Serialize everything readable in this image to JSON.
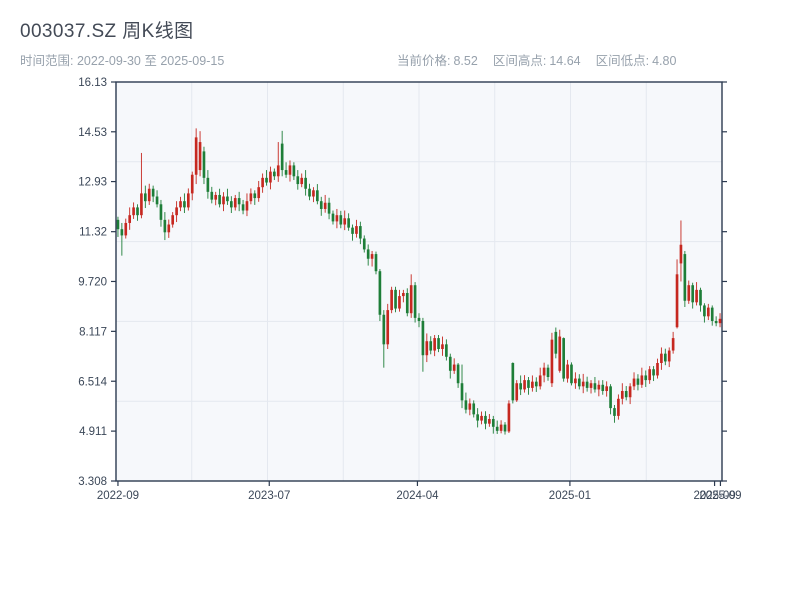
{
  "header": {
    "title": "003037.SZ 周K线图",
    "subtitle": "时间范围: 2022-09-30 至 2025-09-15",
    "info_items": [
      {
        "label": "当前价格:",
        "value": "8.52"
      },
      {
        "label": "区间高点:",
        "value": "14.64"
      },
      {
        "label": "区间低点:",
        "value": "4.80"
      }
    ]
  },
  "chart_data": {
    "type": "candlestick",
    "title": "003037.SZ 周K线图",
    "period": "weekly",
    "date_start": "2022-09-30",
    "date_end": "2025-09-15",
    "current_price": 8.52,
    "range_high": 14.64,
    "range_low": 4.8,
    "ylim": [
      3.308,
      16.13
    ],
    "yticks": [
      {
        "v": 16.13,
        "label": "16.13"
      },
      {
        "v": 14.53,
        "label": "14.53"
      },
      {
        "v": 12.93,
        "label": "12.93"
      },
      {
        "v": 11.32,
        "label": "11.32"
      },
      {
        "v": 9.72,
        "label": "9.720"
      },
      {
        "v": 8.117,
        "label": "8.117"
      },
      {
        "v": 6.514,
        "label": "6.514"
      },
      {
        "v": 4.911,
        "label": "4.911"
      },
      {
        "v": 3.308,
        "label": "3.308"
      }
    ],
    "xticks": [
      {
        "pos": 0,
        "label": "2022-09"
      },
      {
        "pos": 38.7,
        "label": "2023-07"
      },
      {
        "pos": 76.6,
        "label": "2024-04"
      },
      {
        "pos": 115.6,
        "label": "2025-01"
      },
      {
        "pos": 152.6,
        "label": "2025-09"
      },
      {
        "pos": 154.1,
        "label": "2025-09"
      }
    ],
    "grid": true,
    "grid_divisions": {
      "x": 8,
      "y": 5
    },
    "colors": {
      "up": "#c62820",
      "down": "#1e7e38",
      "spine": "#2c3a50",
      "grid": "#e4e8ef",
      "plot_bg": "#f6f8fb",
      "tick_text": "#3b4758"
    },
    "candles": [
      [
        11.7,
        11.8,
        11.15,
        11.4
      ],
      [
        11.4,
        11.6,
        10.55,
        11.2
      ],
      [
        11.2,
        11.74,
        11.1,
        11.6
      ],
      [
        11.6,
        12.1,
        11.38,
        11.85
      ],
      [
        11.85,
        12.26,
        11.73,
        12.1
      ],
      [
        12.1,
        12.2,
        11.67,
        11.85
      ],
      [
        11.85,
        13.85,
        11.75,
        12.55
      ],
      [
        12.55,
        12.8,
        12.08,
        12.3
      ],
      [
        12.3,
        12.86,
        12.18,
        12.7
      ],
      [
        12.7,
        12.8,
        12.27,
        12.45
      ],
      [
        12.45,
        12.65,
        12.1,
        12.2
      ],
      [
        12.2,
        12.34,
        11.48,
        11.7
      ],
      [
        11.7,
        11.95,
        11.05,
        11.3
      ],
      [
        11.3,
        11.71,
        11.12,
        11.55
      ],
      [
        11.55,
        11.95,
        11.45,
        11.85
      ],
      [
        11.85,
        12.3,
        11.63,
        12.1
      ],
      [
        12.1,
        12.44,
        11.98,
        12.3
      ],
      [
        12.3,
        12.55,
        11.92,
        12.1
      ],
      [
        12.1,
        12.71,
        12.0,
        12.55
      ],
      [
        12.55,
        13.25,
        12.33,
        13.15
      ],
      [
        13.15,
        14.64,
        12.85,
        14.35
      ],
      [
        13.3,
        14.55,
        13.1,
        14.2
      ],
      [
        13.9,
        14.05,
        12.85,
        13.05
      ],
      [
        13.05,
        13.3,
        12.38,
        12.6
      ],
      [
        12.6,
        12.76,
        12.23,
        12.35
      ],
      [
        12.35,
        12.6,
        12.17,
        12.5
      ],
      [
        12.5,
        12.7,
        12.1,
        12.2
      ],
      [
        12.2,
        12.59,
        11.98,
        12.45
      ],
      [
        12.45,
        12.7,
        12.18,
        12.3
      ],
      [
        12.3,
        12.46,
        11.92,
        12.1
      ],
      [
        12.1,
        12.5,
        12.0,
        12.4
      ],
      [
        12.4,
        12.6,
        11.98,
        12.2
      ],
      [
        12.2,
        12.34,
        11.88,
        12.0
      ],
      [
        12.0,
        12.55,
        11.82,
        12.3
      ],
      [
        12.3,
        12.71,
        12.2,
        12.55
      ],
      [
        12.55,
        12.65,
        12.18,
        12.4
      ],
      [
        12.4,
        12.95,
        12.28,
        12.75
      ],
      [
        12.75,
        13.19,
        12.57,
        13.05
      ],
      [
        13.05,
        13.3,
        12.8,
        12.9
      ],
      [
        12.9,
        13.41,
        12.68,
        13.25
      ],
      [
        13.25,
        13.35,
        12.98,
        13.1
      ],
      [
        13.1,
        14.2,
        12.92,
        13.45
      ],
      [
        14.15,
        14.56,
        13.1,
        13.3
      ],
      [
        13.3,
        13.55,
        13.05,
        13.15
      ],
      [
        13.15,
        13.61,
        12.93,
        13.45
      ],
      [
        13.45,
        13.55,
        12.98,
        13.1
      ],
      [
        13.1,
        13.3,
        12.67,
        12.85
      ],
      [
        12.85,
        13.19,
        12.75,
        13.05
      ],
      [
        13.05,
        13.3,
        12.48,
        12.7
      ],
      [
        12.7,
        12.86,
        12.33,
        12.45
      ],
      [
        12.45,
        12.75,
        12.27,
        12.65
      ],
      [
        12.65,
        12.85,
        12.2,
        12.3
      ],
      [
        12.3,
        12.44,
        11.83,
        12.05
      ],
      [
        12.05,
        12.5,
        11.93,
        12.25
      ],
      [
        12.25,
        12.41,
        11.72,
        11.9
      ],
      [
        11.9,
        12.0,
        11.55,
        11.65
      ],
      [
        11.65,
        12.05,
        11.43,
        11.85
      ],
      [
        11.85,
        11.99,
        11.43,
        11.55
      ],
      [
        11.55,
        12.0,
        11.37,
        11.75
      ],
      [
        11.75,
        11.91,
        11.35,
        11.45
      ],
      [
        11.45,
        11.55,
        11.03,
        11.25
      ],
      [
        11.25,
        11.7,
        11.13,
        11.5
      ],
      [
        11.5,
        11.64,
        10.92,
        11.1
      ],
      [
        11.1,
        11.2,
        10.65,
        10.75
      ],
      [
        10.75,
        10.91,
        10.23,
        10.45
      ],
      [
        10.45,
        10.7,
        10.2,
        10.6
      ],
      [
        10.6,
        10.68,
        9.95,
        10.05
      ],
      [
        10.05,
        10.12,
        8.45,
        8.65
      ],
      [
        8.65,
        8.8,
        6.95,
        7.7
      ],
      [
        7.7,
        9.0,
        7.55,
        8.8
      ],
      [
        8.8,
        9.55,
        8.7,
        9.45
      ],
      [
        9.45,
        9.55,
        8.73,
        8.85
      ],
      [
        8.85,
        9.45,
        8.75,
        9.25
      ],
      [
        9.25,
        9.45,
        9.05,
        9.35
      ],
      [
        9.35,
        9.5,
        8.6,
        8.7
      ],
      [
        8.7,
        9.95,
        8.55,
        9.6
      ],
      [
        9.6,
        9.7,
        8.4,
        8.55
      ],
      [
        8.55,
        8.7,
        8.25,
        8.45
      ],
      [
        8.45,
        8.55,
        6.82,
        7.35
      ],
      [
        7.35,
        8.05,
        7.13,
        7.8
      ],
      [
        7.8,
        7.96,
        7.38,
        7.5
      ],
      [
        7.5,
        8.0,
        7.32,
        7.9
      ],
      [
        7.9,
        8.0,
        7.45,
        7.55
      ],
      [
        7.55,
        7.95,
        7.33,
        7.7
      ],
      [
        7.7,
        7.86,
        7.18,
        7.3
      ],
      [
        7.3,
        7.4,
        6.6,
        6.85
      ],
      [
        6.85,
        7.25,
        6.75,
        7.05
      ],
      [
        7.05,
        7.1,
        6.3,
        6.45
      ],
      [
        6.45,
        7.05,
        5.65,
        5.9
      ],
      [
        5.9,
        6.15,
        5.48,
        5.6
      ],
      [
        5.6,
        5.96,
        5.42,
        5.8
      ],
      [
        5.8,
        5.9,
        5.35,
        5.45
      ],
      [
        5.45,
        5.65,
        5.03,
        5.25
      ],
      [
        5.25,
        5.54,
        5.13,
        5.4
      ],
      [
        5.4,
        5.55,
        4.97,
        5.15
      ],
      [
        5.15,
        5.46,
        5.05,
        5.3
      ],
      [
        5.3,
        5.4,
        4.83,
        5.05
      ],
      [
        5.05,
        5.25,
        4.82,
        4.92
      ],
      [
        4.92,
        5.26,
        4.84,
        5.12
      ],
      [
        5.12,
        5.2,
        4.8,
        4.9
      ],
      [
        4.9,
        5.9,
        4.85,
        5.8
      ],
      [
        7.1,
        7.12,
        5.8,
        5.9
      ],
      [
        5.9,
        6.55,
        5.85,
        6.45
      ],
      [
        6.45,
        6.7,
        6.07,
        6.25
      ],
      [
        6.25,
        6.71,
        6.15,
        6.55
      ],
      [
        6.55,
        6.65,
        6.08,
        6.3
      ],
      [
        6.3,
        6.7,
        6.18,
        6.5
      ],
      [
        6.5,
        6.64,
        6.17,
        6.35
      ],
      [
        6.35,
        6.95,
        6.25,
        6.7
      ],
      [
        6.7,
        7.11,
        6.48,
        6.95
      ],
      [
        6.95,
        7.05,
        6.53,
        6.65
      ],
      [
        6.45,
        8.07,
        6.33,
        7.85
      ],
      [
        8.1,
        8.24,
        7.25,
        7.4
      ],
      [
        6.85,
        8.17,
        6.79,
        7.95
      ],
      [
        7.9,
        7.92,
        6.5,
        6.6
      ],
      [
        6.6,
        7.2,
        6.47,
        7.05
      ],
      [
        7.05,
        7.12,
        6.38,
        6.45
      ],
      [
        6.45,
        6.8,
        6.27,
        6.6
      ],
      [
        6.6,
        6.74,
        6.25,
        6.35
      ],
      [
        6.35,
        6.75,
        6.13,
        6.5
      ],
      [
        6.5,
        6.66,
        6.18,
        6.3
      ],
      [
        6.3,
        6.55,
        6.12,
        6.45
      ],
      [
        6.45,
        6.65,
        6.15,
        6.25
      ],
      [
        6.25,
        6.54,
        6.03,
        6.4
      ],
      [
        6.4,
        6.55,
        6.08,
        6.2
      ],
      [
        6.2,
        6.51,
        6.02,
        6.35
      ],
      [
        6.35,
        6.42,
        5.45,
        5.65
      ],
      [
        5.65,
        5.75,
        5.18,
        5.4
      ],
      [
        5.4,
        6.09,
        5.28,
        5.95
      ],
      [
        5.95,
        6.45,
        5.77,
        6.2
      ],
      [
        6.2,
        6.36,
        5.9,
        6.0
      ],
      [
        6.0,
        6.45,
        5.78,
        6.35
      ],
      [
        6.35,
        6.8,
        6.23,
        6.6
      ],
      [
        6.6,
        6.74,
        6.22,
        6.4
      ],
      [
        6.4,
        6.95,
        6.3,
        6.7
      ],
      [
        6.7,
        6.86,
        6.33,
        6.55
      ],
      [
        6.55,
        7.0,
        6.43,
        6.9
      ],
      [
        6.9,
        7.0,
        6.52,
        6.7
      ],
      [
        6.7,
        7.24,
        6.6,
        7.1
      ],
      [
        7.1,
        7.6,
        6.88,
        7.4
      ],
      [
        7.4,
        7.56,
        7.03,
        7.15
      ],
      [
        7.15,
        7.6,
        6.97,
        7.5
      ],
      [
        7.5,
        8.1,
        7.4,
        7.9
      ],
      [
        8.25,
        10.43,
        8.21,
        9.95
      ],
      [
        10.3,
        11.68,
        9.72,
        10.9
      ],
      [
        10.6,
        10.7,
        8.9,
        9.1
      ],
      [
        9.1,
        9.75,
        9.0,
        9.6
      ],
      [
        9.6,
        9.68,
        8.85,
        9.05
      ],
      [
        9.05,
        9.7,
        8.95,
        9.45
      ],
      [
        9.45,
        9.52,
        8.75,
        8.95
      ],
      [
        8.95,
        9.02,
        8.4,
        8.6
      ],
      [
        8.6,
        9.0,
        8.48,
        8.88
      ],
      [
        8.88,
        8.95,
        8.3,
        8.45
      ],
      [
        8.45,
        8.6,
        8.28,
        8.38
      ],
      [
        8.38,
        8.7,
        8.25,
        8.52
      ]
    ]
  }
}
